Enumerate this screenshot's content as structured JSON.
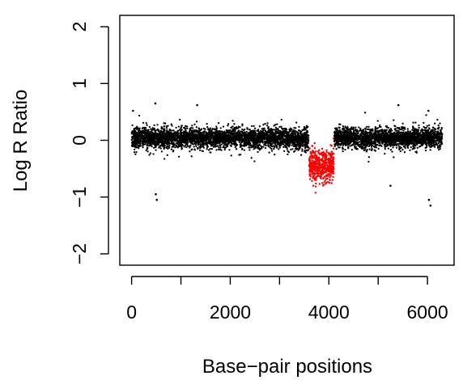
{
  "chart_data": {
    "type": "scatter",
    "title": "",
    "xlabel": "Base−pair positions",
    "ylabel": "Log R Ratio",
    "xlim": [
      -240,
      6540
    ],
    "ylim": [
      -2.2,
      2.2
    ],
    "x_ticks": [
      0,
      2000,
      4000,
      6000
    ],
    "x_tick_labels": [
      "0",
      "2000",
      "4000",
      "6000"
    ],
    "x_minor_ticks": [
      0,
      1000,
      2000,
      3000,
      4000,
      5000,
      6000
    ],
    "y_ticks": [
      -2,
      -1,
      0,
      1,
      2
    ],
    "y_tick_labels": [
      "−2",
      "−1",
      "0",
      "1",
      "2"
    ],
    "grid": false,
    "legend": "none",
    "colors": {
      "normal": "#000000",
      "deletion": "#ff0000"
    },
    "series": [
      {
        "color": "#000000",
        "points": 6000,
        "x_range": [
          0,
          6300
        ],
        "typical_y_range": [
          -0.25,
          0.25
        ],
        "outliers": [
          [
            30,
            0.52
          ],
          [
            480,
            0.65
          ],
          [
            1330,
            0.62
          ],
          [
            5410,
            0.62
          ],
          [
            6020,
            0.52
          ],
          [
            510,
            -1.05
          ],
          [
            490,
            -0.95
          ],
          [
            5250,
            -0.8
          ],
          [
            6060,
            -1.15
          ],
          [
            6030,
            -1.05
          ]
        ]
      },
      {
        "color": "#ff0000",
        "points": 500,
        "x_range": [
          3600,
          4100
        ],
        "typical_y_range": [
          -0.85,
          -0.05
        ],
        "center_y": -0.45
      }
    ]
  }
}
